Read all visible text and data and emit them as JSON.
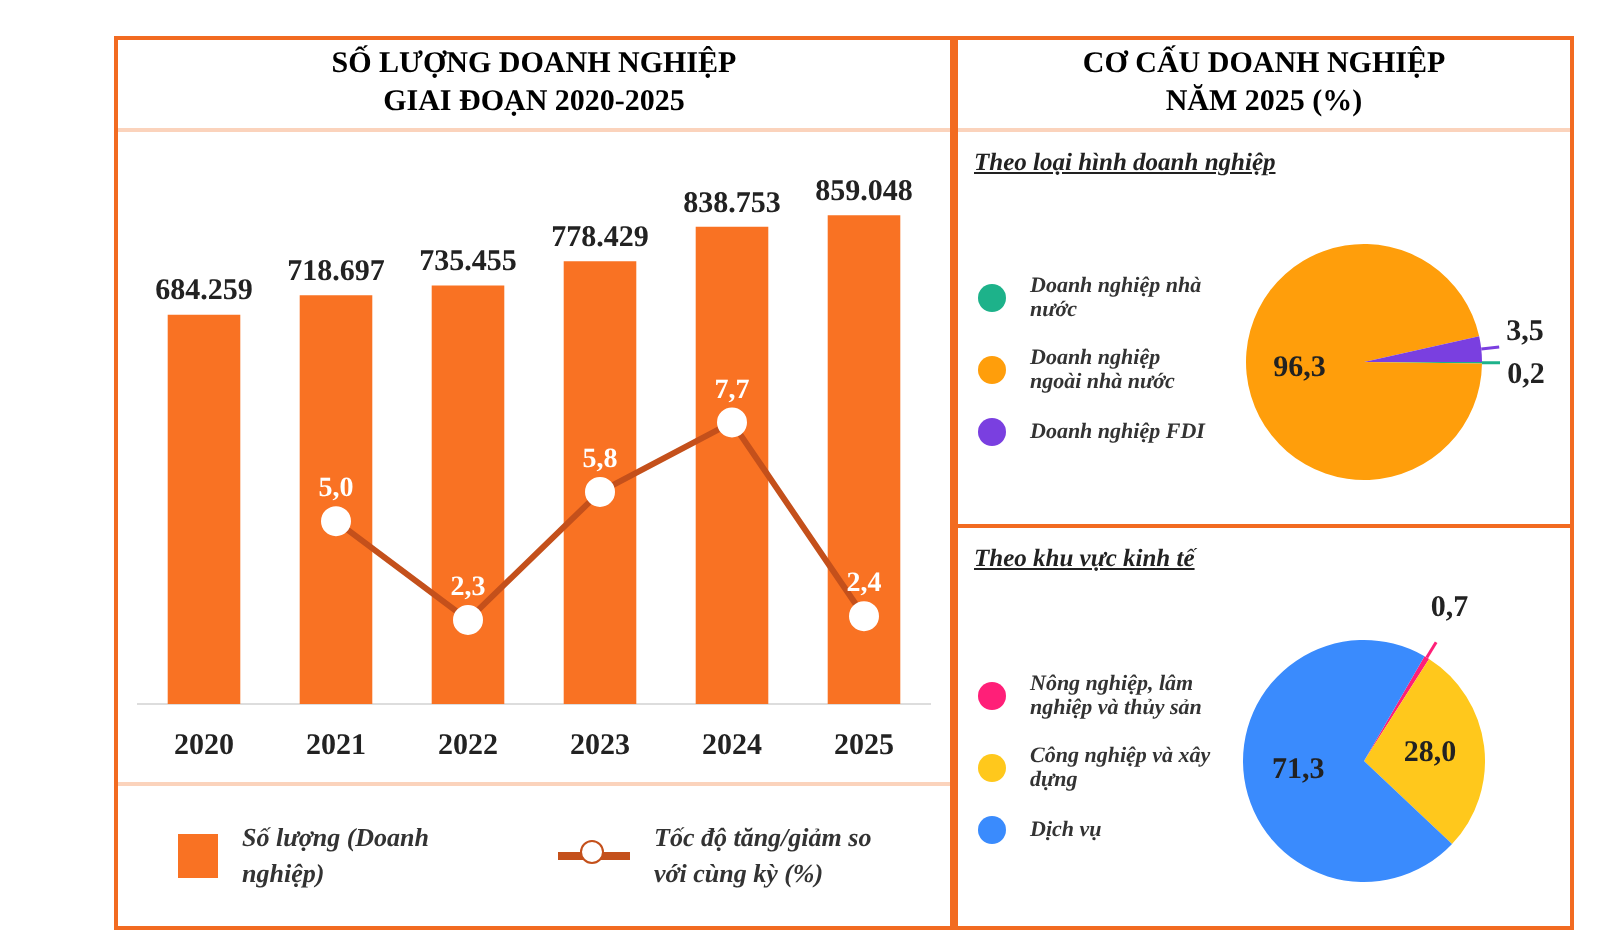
{
  "chart_data": [
    {
      "type": "bar",
      "title": "SỐ LƯỢNG DOANH NGHIỆP GIAI ĐOẠN 2020-2025",
      "categories": [
        "2020",
        "2021",
        "2022",
        "2023",
        "2024",
        "2025"
      ],
      "series": [
        {
          "name": "Số lượng (Doanh nghiệp)",
          "type": "bar",
          "color": "#f97223",
          "values": [
            684259,
            718697,
            735455,
            778429,
            838753,
            859048
          ],
          "value_labels": [
            "684.259",
            "718.697",
            "735.455",
            "778.429",
            "838.753",
            "859.048"
          ]
        },
        {
          "name": "Tốc độ tăng/giảm so với cùng kỳ (%)",
          "type": "line",
          "axis": "y2",
          "color": "#c4501b",
          "values": [
            null,
            5.0,
            2.3,
            5.8,
            7.7,
            2.4
          ],
          "value_labels": [
            null,
            "5,0",
            "2,3",
            "5,8",
            "7,7",
            "2,4"
          ]
        }
      ],
      "marker": "circle",
      "grid": false,
      "legend": "bottom",
      "tick_labels": "x"
    },
    {
      "type": "pie",
      "title": "CƠ CẤU DOANH NGHIỆP NĂM 2025 (%)",
      "subtitle": "Theo loại hình doanh nghiệp",
      "categories": [
        "Doanh nghiệp nhà nước",
        "Doanh nghiệp ngoài nhà nước",
        "Doanh nghiệp FDI"
      ],
      "values": [
        0.2,
        96.3,
        3.5
      ],
      "colors": [
        "#1db28a",
        "#ff9e0b",
        "#7a3fe0"
      ],
      "value_labels": [
        "0,2",
        "96,3",
        "3,5"
      ],
      "legend": "left"
    },
    {
      "type": "pie",
      "subtitle": "Theo khu vực kinh tế",
      "categories": [
        "Nông nghiệp, lâm nghiệp và thủy sản",
        "Công nghiệp và xây dựng",
        "Dịch vụ"
      ],
      "values": [
        0.7,
        28.0,
        71.3
      ],
      "colors": [
        "#ff1f78",
        "#ffc81c",
        "#3a8bfd"
      ],
      "value_labels": [
        "0,7",
        "28,0",
        "71,3"
      ],
      "legend": "left"
    }
  ]
}
